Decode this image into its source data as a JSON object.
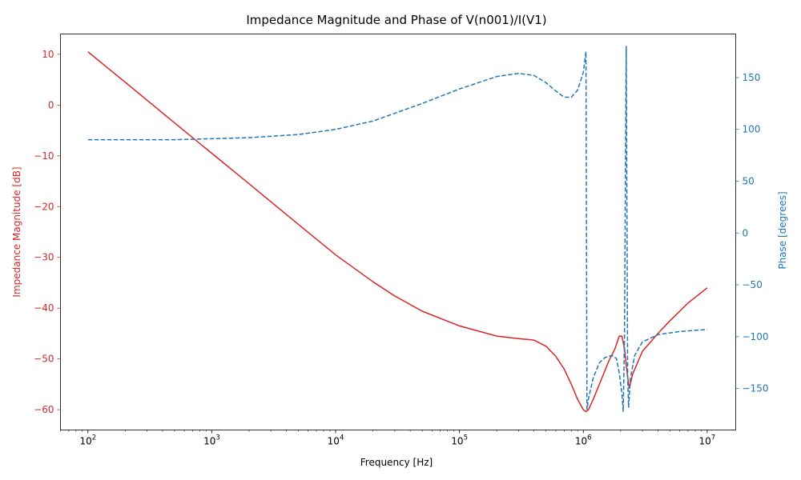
{
  "chart_data": {
    "type": "line",
    "title": "Impedance Magnitude and Phase of V(n001)/I(V1)",
    "xlabel": "Frequency [Hz]",
    "ylabel_left": "Impedance Magnitude [dB]",
    "ylabel_right": "Phase [degrees]",
    "x_scale": "log",
    "xlim": [
      60,
      17000000
    ],
    "ylim_left": [
      -64,
      14
    ],
    "ylim_right": [
      -190,
      192
    ],
    "x_ticks": [
      {
        "value": 100,
        "base": "10",
        "exp": "2"
      },
      {
        "value": 1000,
        "base": "10",
        "exp": "3"
      },
      {
        "value": 10000,
        "base": "10",
        "exp": "4"
      },
      {
        "value": 100000,
        "base": "10",
        "exp": "5"
      },
      {
        "value": 1000000,
        "base": "10",
        "exp": "6"
      },
      {
        "value": 10000000,
        "base": "10",
        "exp": "7"
      }
    ],
    "y_ticks_left": [
      {
        "value": 10,
        "label": "10"
      },
      {
        "value": 0,
        "label": "0"
      },
      {
        "value": -10,
        "label": "−10"
      },
      {
        "value": -20,
        "label": "−20"
      },
      {
        "value": -30,
        "label": "−30"
      },
      {
        "value": -40,
        "label": "−40"
      },
      {
        "value": -50,
        "label": "−50"
      },
      {
        "value": -60,
        "label": "−60"
      }
    ],
    "y_ticks_right": [
      {
        "value": 150,
        "label": "150"
      },
      {
        "value": 100,
        "label": "100"
      },
      {
        "value": 50,
        "label": "50"
      },
      {
        "value": 0,
        "label": "0"
      },
      {
        "value": -50,
        "label": "−50"
      },
      {
        "value": -100,
        "label": "−100"
      },
      {
        "value": -150,
        "label": "−150"
      }
    ],
    "colors": {
      "magnitude": "#d62728",
      "phase": "#1f77b4",
      "axis": "#000000"
    },
    "grid": false,
    "series": [
      {
        "axis": "left",
        "style": "solid",
        "color": "#d62728",
        "points": [
          [
            100,
            10.5
          ],
          [
            200,
            4.5
          ],
          [
            500,
            -3.5
          ],
          [
            1000,
            -9.5
          ],
          [
            2000,
            -15.5
          ],
          [
            5000,
            -23.5
          ],
          [
            10000,
            -29.5
          ],
          [
            20000,
            -34.8
          ],
          [
            30000,
            -37.6
          ],
          [
            50000,
            -40.6
          ],
          [
            100000,
            -43.5
          ],
          [
            200000,
            -45.5
          ],
          [
            300000,
            -46.0
          ],
          [
            400000,
            -46.3
          ],
          [
            500000,
            -47.5
          ],
          [
            600000,
            -49.5
          ],
          [
            700000,
            -52.0
          ],
          [
            800000,
            -55.0
          ],
          [
            900000,
            -58.0
          ],
          [
            1000000,
            -60.0
          ],
          [
            1050000,
            -60.4
          ],
          [
            1100000,
            -60.0
          ],
          [
            1200000,
            -58.0
          ],
          [
            1400000,
            -54.0
          ],
          [
            1600000,
            -50.5
          ],
          [
            1800000,
            -48.0
          ],
          [
            1950000,
            -45.5
          ],
          [
            2050000,
            -45.5
          ],
          [
            2150000,
            -48.0
          ],
          [
            2250000,
            -52.5
          ],
          [
            2350000,
            -55.8
          ],
          [
            2500000,
            -53.0
          ],
          [
            3000000,
            -48.5
          ],
          [
            4000000,
            -45.0
          ],
          [
            5000000,
            -42.5
          ],
          [
            7000000,
            -39.0
          ],
          [
            10000000,
            -36.0
          ]
        ]
      },
      {
        "axis": "right",
        "style": "dashed",
        "color": "#1f77b4",
        "points": [
          [
            100,
            90.0
          ],
          [
            500,
            90.0
          ],
          [
            1000,
            91.0
          ],
          [
            2000,
            92.0
          ],
          [
            5000,
            95.0
          ],
          [
            10000,
            100.0
          ],
          [
            20000,
            108.0
          ],
          [
            50000,
            125.0
          ],
          [
            100000,
            139.0
          ],
          [
            200000,
            151.0
          ],
          [
            300000,
            154.0
          ],
          [
            400000,
            152.0
          ],
          [
            500000,
            145.0
          ],
          [
            600000,
            137.0
          ],
          [
            700000,
            131.0
          ],
          [
            800000,
            131.0
          ],
          [
            900000,
            138.0
          ],
          [
            1000000,
            155.0
          ],
          [
            1050000,
            175.0
          ],
          [
            1060000,
            0.0
          ],
          [
            1070000,
            -170.0
          ],
          [
            1100000,
            -160.0
          ],
          [
            1200000,
            -140.0
          ],
          [
            1350000,
            -125.0
          ],
          [
            1500000,
            -120.0
          ],
          [
            1700000,
            -118.0
          ],
          [
            1850000,
            -121.0
          ],
          [
            1950000,
            -135.0
          ],
          [
            2050000,
            -155.0
          ],
          [
            2100000,
            -172.0
          ],
          [
            2150000,
            -100.0
          ],
          [
            2180000,
            30.0
          ],
          [
            2220000,
            180.0
          ],
          [
            2250000,
            20.0
          ],
          [
            2280000,
            -140.0
          ],
          [
            2320000,
            -168.0
          ],
          [
            2400000,
            -140.0
          ],
          [
            2600000,
            -118.0
          ],
          [
            3000000,
            -105.0
          ],
          [
            4000000,
            -98.0
          ],
          [
            6000000,
            -95.0
          ],
          [
            10000000,
            -93.0
          ]
        ]
      }
    ]
  }
}
